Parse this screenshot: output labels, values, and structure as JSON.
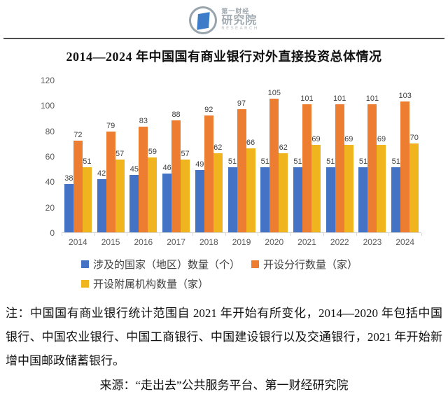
{
  "logo": {
    "brand_top": "第一财经",
    "brand_main": "研究院",
    "brand_sub": "RESEARCH"
  },
  "title": "2014—2024 年中国国有商业银行对外直接投资总体情况",
  "chart_data": {
    "type": "bar",
    "title": "",
    "xlabel": "",
    "ylabel": "",
    "categories": [
      "2014",
      "2015",
      "2016",
      "2017",
      "2018",
      "2019",
      "2020",
      "2021",
      "2022",
      "2023",
      "2024"
    ],
    "series": [
      {
        "name": "涉及的国家（地区）数量（个）",
        "color": "#4472C4",
        "values": [
          38,
          42,
          45,
          46,
          49,
          51,
          51,
          51,
          51,
          51,
          51
        ]
      },
      {
        "name": "开设分行数量（家）",
        "color": "#ED7D31",
        "values": [
          72,
          79,
          83,
          88,
          92,
          97,
          105,
          101,
          101,
          101,
          103
        ]
      },
      {
        "name": "开设附属机构数量（家）",
        "color": "#EFB41E",
        "values": [
          51,
          57,
          59,
          57,
          62,
          66,
          62,
          69,
          69,
          69,
          70
        ]
      }
    ],
    "ylim": [
      0,
      120
    ],
    "ytick_interval": 20,
    "grid": false,
    "legend_position": "bottom",
    "data_labels": true
  },
  "note": "注：中国国有商业银行统计范围自 2021 年开始有所变化，2014—2020 年包括中国银行、中国农业银行、中国工商银行、中国建设银行以及交通银行，2021 年开始新增中国邮政储蓄银行。",
  "source": "来源：“走出去”公共服务平台、第一财经研究院"
}
